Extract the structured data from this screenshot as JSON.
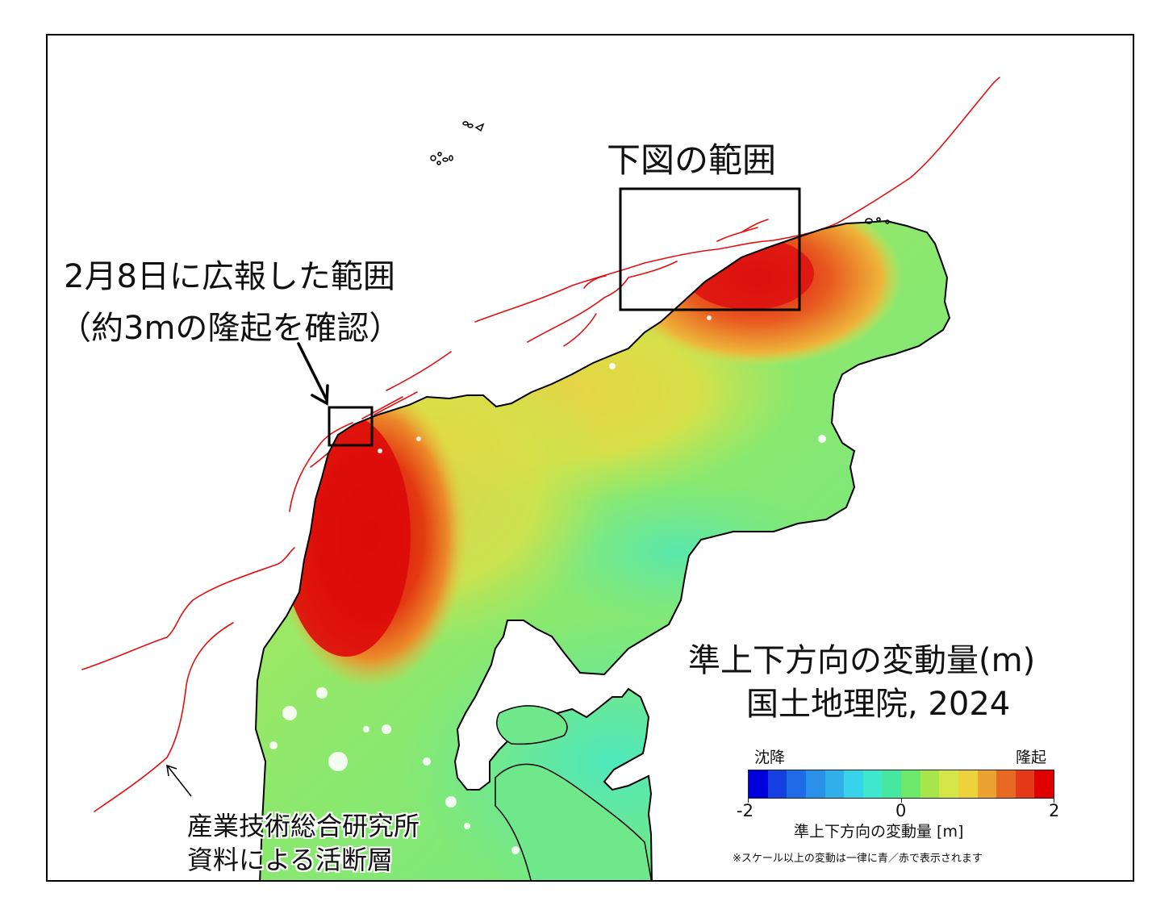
{
  "map": {
    "label_region_below": "下図の範囲",
    "label_feb8_line1": "2月8日に広報した範囲",
    "label_feb8_line2": "（約3mの隆起を確認）",
    "label_fault_line1": "産業技術総合研究所",
    "label_fault_line2": "資料による活断層"
  },
  "legend": {
    "title_line1": "準上下方向の変動量(m)",
    "title_line2": "国土地理院, 2024",
    "low_label": "沈降",
    "high_label": "隆起",
    "tick_min": "-2",
    "tick_mid": "0",
    "tick_max": "2",
    "axis_label": "準上下方向の変動量 [m]",
    "note": "※スケール以上の変動は一律に青／赤で表示されます",
    "colors": [
      "#0000dd",
      "#1440e0",
      "#1f6ae6",
      "#2a90e8",
      "#30b0ea",
      "#38d2ea",
      "#3ee8cf",
      "#45e8a0",
      "#6de86a",
      "#a6e64a",
      "#d4e648",
      "#eed23c",
      "#eca230",
      "#e86a22",
      "#e43818",
      "#e00000"
    ]
  },
  "colors": {
    "fault_line": "#e01010",
    "coast_line": "#000000",
    "uplift_max": "#dd0a0a",
    "uplift_mid": "#ee8a2a",
    "neutral": "#6ee88a"
  }
}
